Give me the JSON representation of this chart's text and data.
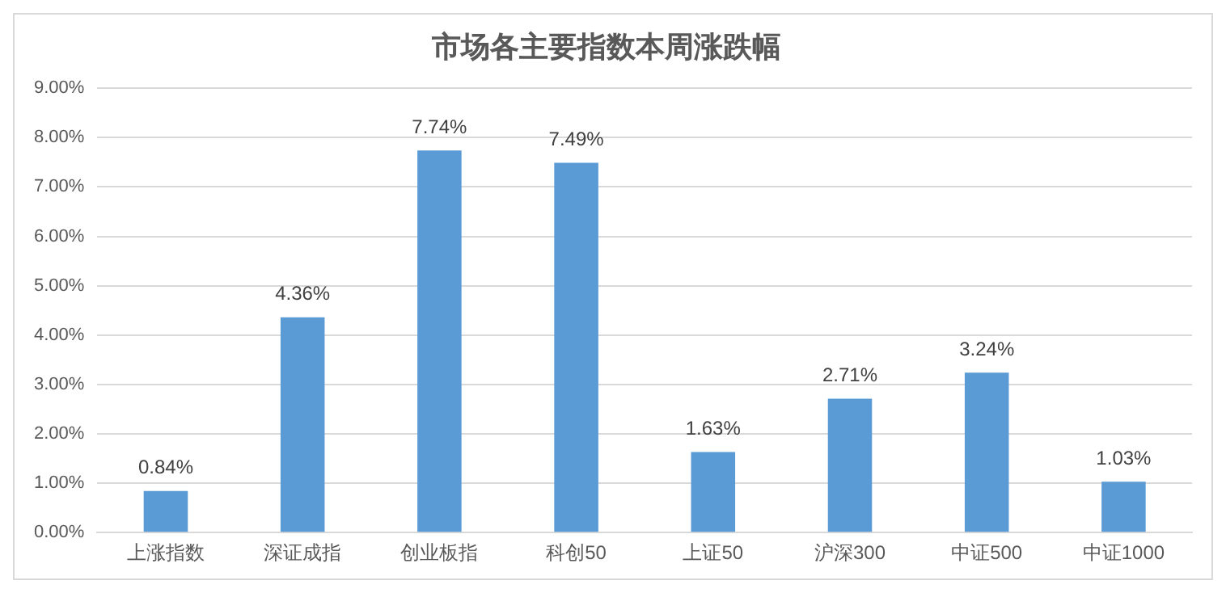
{
  "chart_data": {
    "type": "bar",
    "title": "市场各主要指数本周涨跌幅",
    "categories": [
      "上涨指数",
      "深证成指",
      "创业板指",
      "科创50",
      "上证50",
      "沪深300",
      "中证500",
      "中证1000"
    ],
    "values": [
      0.84,
      4.36,
      7.74,
      7.49,
      1.63,
      2.71,
      3.24,
      1.03
    ],
    "value_labels": [
      "0.84%",
      "4.36%",
      "7.74%",
      "7.49%",
      "1.63%",
      "2.71%",
      "3.24%",
      "1.03%"
    ],
    "color": "#5b9bd5",
    "ylim": [
      0,
      9
    ],
    "yticks": [
      {
        "value": 0,
        "label": "0.00%"
      },
      {
        "value": 1,
        "label": "1.00%"
      },
      {
        "value": 2,
        "label": "2.00%"
      },
      {
        "value": 3,
        "label": "3.00%"
      },
      {
        "value": 4,
        "label": "4.00%"
      },
      {
        "value": 5,
        "label": "5.00%"
      },
      {
        "value": 6,
        "label": "6.00%"
      },
      {
        "value": 7,
        "label": "7.00%"
      },
      {
        "value": 8,
        "label": "8.00%"
      },
      {
        "value": 9,
        "label": "9.00%"
      }
    ],
    "grid": "y",
    "legend": false
  }
}
